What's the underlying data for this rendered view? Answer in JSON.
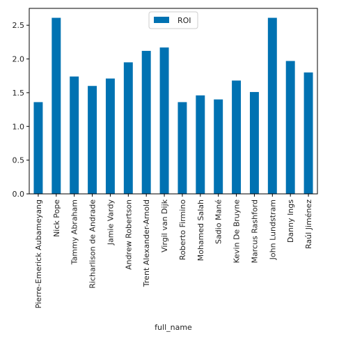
{
  "chart_data": {
    "type": "bar",
    "title": "",
    "xlabel": "full_name",
    "ylabel": "",
    "ylim": [
      0,
      2.75
    ],
    "yticks": [
      "0.0",
      "0.5",
      "1.0",
      "1.5",
      "2.0",
      "2.5"
    ],
    "grid": false,
    "legend": {
      "placement": "top-center",
      "entries": [
        "ROI"
      ]
    },
    "categories": [
      "Pierre-Emerick Aubameyang",
      "Nick Pope",
      "Tammy Abraham",
      "Richarlison de Andrade",
      "Jamie Vardy",
      "Andrew Robertson",
      "Trent Alexander-Arnold",
      "Virgil van Dijk",
      "Roberto Firmino",
      "Mohamed Salah",
      "Sadio Mané",
      "Kevin De Bruyne",
      "Marcus Rashford",
      "John Lundstram",
      "Danny Ings",
      "Raúl Jiménez"
    ],
    "series": [
      {
        "name": "ROI",
        "color": "#0072b2",
        "values": [
          1.36,
          2.61,
          1.74,
          1.6,
          1.71,
          1.95,
          2.12,
          2.17,
          1.36,
          1.46,
          1.4,
          1.68,
          1.51,
          2.61,
          1.97,
          1.8
        ]
      }
    ]
  }
}
